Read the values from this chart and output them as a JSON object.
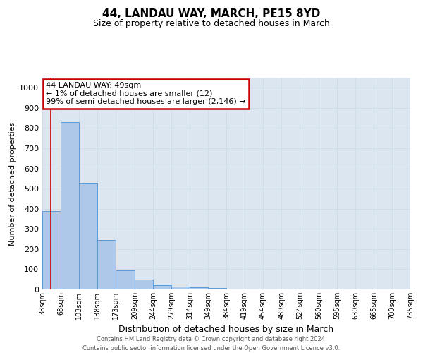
{
  "title1": "44, LANDAU WAY, MARCH, PE15 8YD",
  "title2": "Size of property relative to detached houses in March",
  "xlabel": "Distribution of detached houses by size in March",
  "ylabel": "Number of detached properties",
  "bin_edges": [
    33,
    68,
    103,
    138,
    173,
    209,
    244,
    279,
    314,
    349,
    384,
    419,
    454,
    489,
    524,
    560,
    595,
    630,
    665,
    700,
    735
  ],
  "bar_heights": [
    390,
    830,
    530,
    245,
    95,
    50,
    22,
    15,
    10,
    8,
    0,
    0,
    0,
    0,
    0,
    0,
    0,
    0,
    0,
    0
  ],
  "bar_color": "#adc8e8",
  "bar_edge_color": "#5b9bd5",
  "grid_color": "#d0dce8",
  "property_x": 49,
  "vline_color": "#cc0000",
  "annotation_text": "44 LANDAU WAY: 49sqm\n← 1% of detached houses are smaller (12)\n99% of semi-detached houses are larger (2,146) →",
  "annotation_box_color": "#cc0000",
  "ylim": [
    0,
    1050
  ],
  "xlim": [
    33,
    735
  ],
  "tick_labels": [
    "33sqm",
    "68sqm",
    "103sqm",
    "138sqm",
    "173sqm",
    "209sqm",
    "244sqm",
    "279sqm",
    "314sqm",
    "349sqm",
    "384sqm",
    "419sqm",
    "454sqm",
    "489sqm",
    "524sqm",
    "560sqm",
    "595sqm",
    "630sqm",
    "665sqm",
    "700sqm",
    "735sqm"
  ],
  "yticks": [
    0,
    100,
    200,
    300,
    400,
    500,
    600,
    700,
    800,
    900,
    1000
  ],
  "footer1": "Contains HM Land Registry data © Crown copyright and database right 2024.",
  "footer2": "Contains public sector information licensed under the Open Government Licence v3.0.",
  "background_color": "#dce6f0",
  "title1_fontsize": 11,
  "title2_fontsize": 9,
  "xlabel_fontsize": 9,
  "ylabel_fontsize": 8,
  "tick_fontsize": 7,
  "footer_fontsize": 6,
  "ann_fontsize": 8
}
